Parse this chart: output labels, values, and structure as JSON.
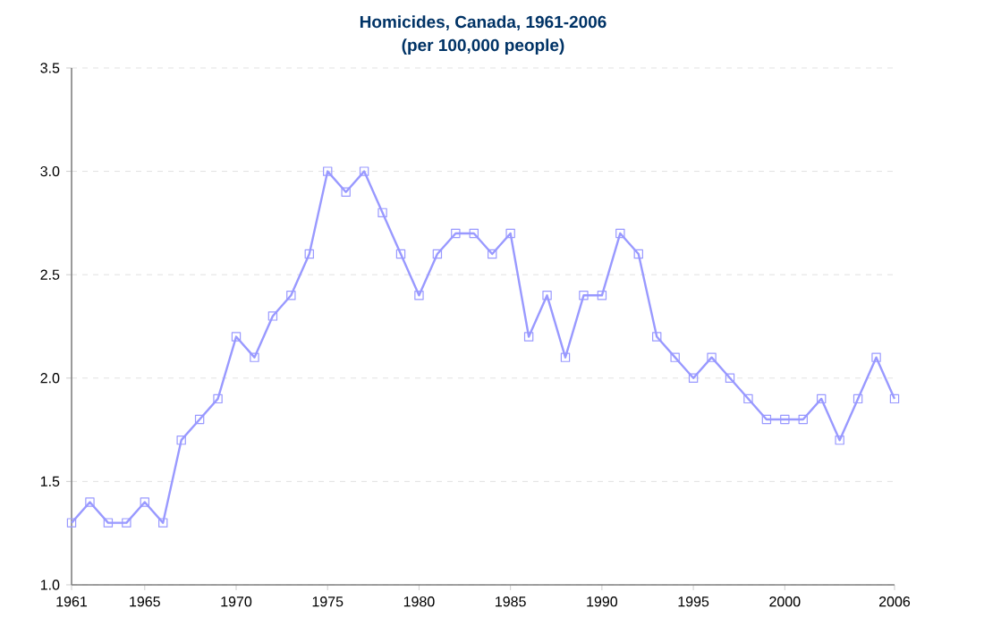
{
  "chart_data": {
    "type": "line",
    "title": "Homicides, Canada, 1961-2006",
    "subtitle": "(per 100,000 people)",
    "x": [
      1961,
      1962,
      1963,
      1964,
      1965,
      1966,
      1967,
      1968,
      1969,
      1970,
      1971,
      1972,
      1973,
      1974,
      1975,
      1976,
      1977,
      1978,
      1979,
      1980,
      1981,
      1982,
      1983,
      1984,
      1985,
      1986,
      1987,
      1988,
      1989,
      1990,
      1991,
      1992,
      1993,
      1994,
      1995,
      1996,
      1997,
      1998,
      1999,
      2000,
      2001,
      2002,
      2003,
      2004,
      2005,
      2006
    ],
    "series": [
      {
        "color": "#9999ff",
        "values": [
          1.3,
          1.4,
          1.3,
          1.3,
          1.4,
          1.3,
          1.7,
          1.8,
          1.9,
          2.2,
          2.1,
          2.3,
          2.4,
          2.6,
          3.0,
          2.9,
          3.0,
          2.8,
          2.6,
          2.4,
          2.6,
          2.7,
          2.7,
          2.6,
          2.7,
          2.2,
          2.4,
          2.1,
          2.4,
          2.4,
          2.7,
          2.6,
          2.2,
          2.1,
          2.0,
          2.1,
          2.0,
          1.9,
          1.8,
          1.8,
          1.8,
          1.9,
          1.7,
          1.9,
          2.1,
          1.9
        ]
      }
    ],
    "xlim": [
      1961,
      2006
    ],
    "ylim": [
      1.0,
      3.5
    ],
    "xticks": [
      1961,
      1965,
      1970,
      1975,
      1980,
      1985,
      1990,
      1995,
      2000,
      2006
    ],
    "yticks": [
      {
        "value": 1.0,
        "label": "1.0"
      },
      {
        "value": 1.5,
        "label": "1.5"
      },
      {
        "value": 2.0,
        "label": "2.0"
      },
      {
        "value": 2.5,
        "label": "2.5"
      },
      {
        "value": 3.0,
        "label": "3.0"
      },
      {
        "value": 3.5,
        "label": "3.5"
      }
    ],
    "grid": "y",
    "marker": "square",
    "line_style": "solid"
  }
}
